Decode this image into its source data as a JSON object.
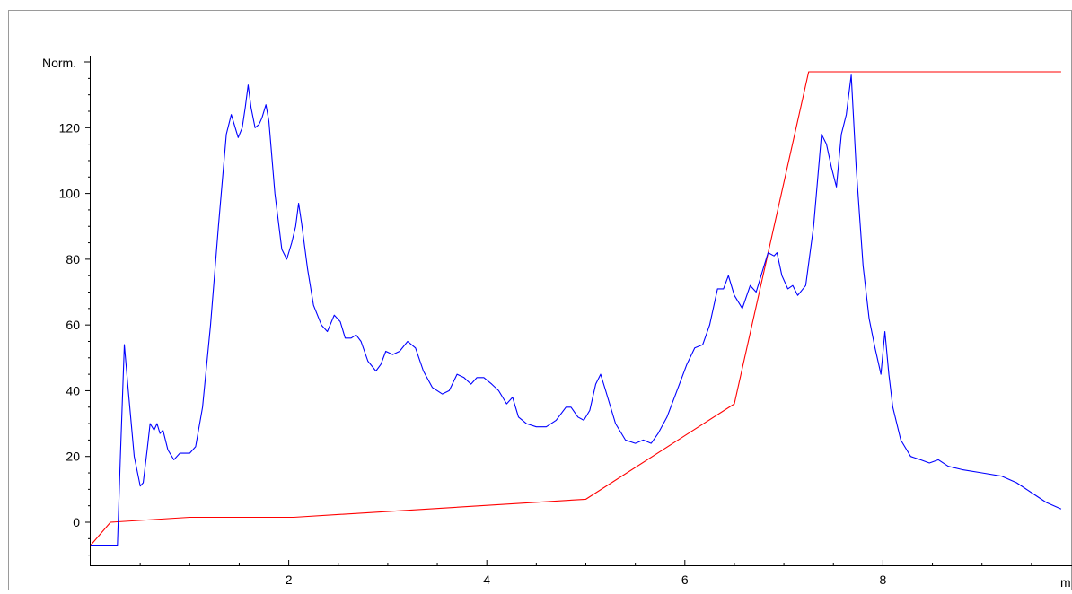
{
  "colors": {
    "background": "#ffffff",
    "frame": "#9a9a9a",
    "axis": "#000000",
    "signal": "#0000ff",
    "gradient": "#ff0000"
  },
  "chart_data": {
    "type": "line",
    "title": "",
    "ylabel": "Norm.",
    "xlabel": "m",
    "xlim": [
      0,
      9.8
    ],
    "ylim": [
      -14,
      143
    ],
    "grid": false,
    "legend": "none",
    "x_ticks": [
      2,
      4,
      6,
      8
    ],
    "y_ticks": [
      0,
      20,
      40,
      60,
      80,
      100,
      120
    ],
    "series": [
      {
        "color": "#0000ff",
        "points": [
          [
            0.0,
            -7
          ],
          [
            0.27,
            -7
          ],
          [
            0.3,
            20
          ],
          [
            0.34,
            54
          ],
          [
            0.38,
            40
          ],
          [
            0.44,
            20
          ],
          [
            0.5,
            11
          ],
          [
            0.53,
            12
          ],
          [
            0.57,
            22
          ],
          [
            0.6,
            30
          ],
          [
            0.64,
            28
          ],
          [
            0.67,
            30
          ],
          [
            0.7,
            27
          ],
          [
            0.73,
            28
          ],
          [
            0.78,
            22
          ],
          [
            0.84,
            19
          ],
          [
            0.9,
            21
          ],
          [
            0.95,
            21
          ],
          [
            1.0,
            21
          ],
          [
            1.06,
            23
          ],
          [
            1.13,
            35
          ],
          [
            1.21,
            60
          ],
          [
            1.29,
            90
          ],
          [
            1.37,
            118
          ],
          [
            1.42,
            124
          ],
          [
            1.46,
            120
          ],
          [
            1.49,
            117
          ],
          [
            1.53,
            120
          ],
          [
            1.56,
            126
          ],
          [
            1.59,
            133
          ],
          [
            1.62,
            126
          ],
          [
            1.66,
            120
          ],
          [
            1.7,
            121
          ],
          [
            1.73,
            123
          ],
          [
            1.77,
            127
          ],
          [
            1.8,
            122
          ],
          [
            1.86,
            100
          ],
          [
            1.93,
            83
          ],
          [
            1.98,
            80
          ],
          [
            2.03,
            85
          ],
          [
            2.07,
            90
          ],
          [
            2.1,
            97
          ],
          [
            2.13,
            91
          ],
          [
            2.19,
            77
          ],
          [
            2.25,
            66
          ],
          [
            2.33,
            60
          ],
          [
            2.39,
            58
          ],
          [
            2.46,
            63
          ],
          [
            2.52,
            61
          ],
          [
            2.57,
            56
          ],
          [
            2.63,
            56
          ],
          [
            2.68,
            57
          ],
          [
            2.73,
            55
          ],
          [
            2.8,
            49
          ],
          [
            2.88,
            46
          ],
          [
            2.93,
            48
          ],
          [
            2.98,
            52
          ],
          [
            3.05,
            51
          ],
          [
            3.12,
            52
          ],
          [
            3.2,
            55
          ],
          [
            3.28,
            53
          ],
          [
            3.36,
            46
          ],
          [
            3.45,
            41
          ],
          [
            3.55,
            39
          ],
          [
            3.62,
            40
          ],
          [
            3.7,
            45
          ],
          [
            3.77,
            44
          ],
          [
            3.84,
            42
          ],
          [
            3.9,
            44
          ],
          [
            3.97,
            44
          ],
          [
            4.05,
            42
          ],
          [
            4.12,
            40
          ],
          [
            4.2,
            36
          ],
          [
            4.26,
            38
          ],
          [
            4.32,
            32
          ],
          [
            4.4,
            30
          ],
          [
            4.5,
            29
          ],
          [
            4.6,
            29
          ],
          [
            4.7,
            31
          ],
          [
            4.8,
            35
          ],
          [
            4.85,
            35
          ],
          [
            4.92,
            32
          ],
          [
            4.98,
            31
          ],
          [
            5.04,
            34
          ],
          [
            5.1,
            42
          ],
          [
            5.15,
            45
          ],
          [
            5.2,
            40
          ],
          [
            5.3,
            30
          ],
          [
            5.4,
            25
          ],
          [
            5.5,
            24
          ],
          [
            5.58,
            25
          ],
          [
            5.66,
            24
          ],
          [
            5.73,
            27
          ],
          [
            5.82,
            32
          ],
          [
            5.92,
            40
          ],
          [
            6.02,
            48
          ],
          [
            6.1,
            53
          ],
          [
            6.18,
            54
          ],
          [
            6.25,
            60
          ],
          [
            6.33,
            71
          ],
          [
            6.39,
            71
          ],
          [
            6.44,
            75
          ],
          [
            6.5,
            69
          ],
          [
            6.58,
            65
          ],
          [
            6.66,
            72
          ],
          [
            6.72,
            70
          ],
          [
            6.78,
            76
          ],
          [
            6.84,
            82
          ],
          [
            6.9,
            81
          ],
          [
            6.93,
            82
          ],
          [
            6.98,
            75
          ],
          [
            7.04,
            71
          ],
          [
            7.09,
            72
          ],
          [
            7.14,
            69
          ],
          [
            7.22,
            72
          ],
          [
            7.3,
            90
          ],
          [
            7.38,
            118
          ],
          [
            7.43,
            115
          ],
          [
            7.48,
            108
          ],
          [
            7.53,
            102
          ],
          [
            7.58,
            118
          ],
          [
            7.63,
            124
          ],
          [
            7.68,
            136
          ],
          [
            7.73,
            108
          ],
          [
            7.8,
            78
          ],
          [
            7.86,
            62
          ],
          [
            7.92,
            53
          ],
          [
            7.98,
            45
          ],
          [
            8.02,
            58
          ],
          [
            8.06,
            45
          ],
          [
            8.1,
            35
          ],
          [
            8.18,
            25
          ],
          [
            8.28,
            20
          ],
          [
            8.38,
            19
          ],
          [
            8.47,
            18
          ],
          [
            8.56,
            19
          ],
          [
            8.66,
            17
          ],
          [
            8.8,
            16
          ],
          [
            9.0,
            15
          ],
          [
            9.2,
            14
          ],
          [
            9.35,
            12
          ],
          [
            9.5,
            9
          ],
          [
            9.65,
            6
          ],
          [
            9.8,
            4
          ]
        ]
      },
      {
        "color": "#ff0000",
        "points": [
          [
            0.0,
            -7
          ],
          [
            0.2,
            0
          ],
          [
            1.0,
            1.5
          ],
          [
            2.05,
            1.5
          ],
          [
            5.0,
            7
          ],
          [
            6.5,
            36
          ],
          [
            7.25,
            137
          ],
          [
            9.8,
            137
          ]
        ]
      }
    ]
  }
}
